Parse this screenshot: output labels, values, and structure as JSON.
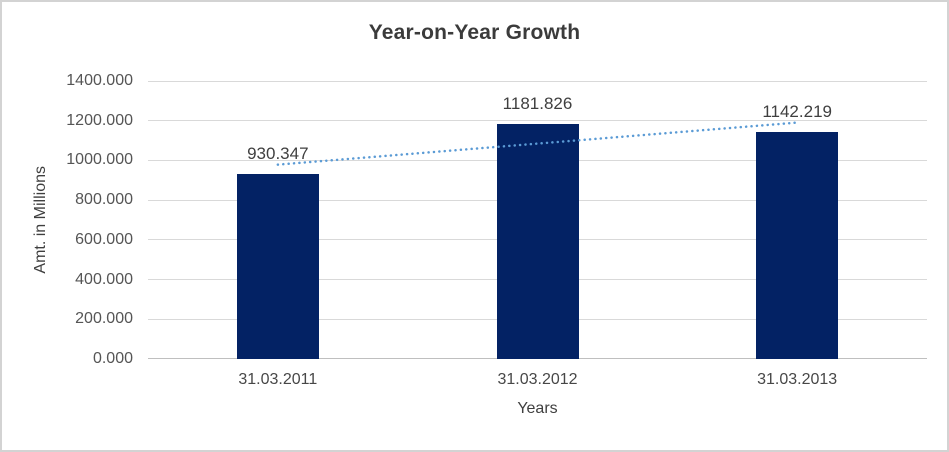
{
  "chart_data": {
    "type": "bar",
    "title": "Year-on-Year Growth",
    "xlabel": "Years",
    "ylabel": "Amt. in Millions",
    "categories": [
      "31.03.2011",
      "31.03.2012",
      "31.03.2013"
    ],
    "values": [
      930.347,
      1181.826,
      1142.219
    ],
    "data_labels": [
      "930.347",
      "1181.826",
      "1142.219"
    ],
    "ylim": [
      0,
      1400
    ],
    "ytick_step": 200,
    "ytick_labels": [
      "0.000",
      "200.000",
      "400.000",
      "600.000",
      "800.000",
      "1000.000",
      "1200.000",
      "1400.000"
    ],
    "grid": true,
    "legend": "none",
    "colors": {
      "bar": "#032264",
      "trendline": "#5b9bd5",
      "gridline": "#d9d9d9",
      "axis_line": "#bfbfbf",
      "title_text": "#3b3b3b",
      "tick_text": "#555555"
    },
    "trendline": {
      "type": "linear",
      "style": "dotted"
    }
  }
}
